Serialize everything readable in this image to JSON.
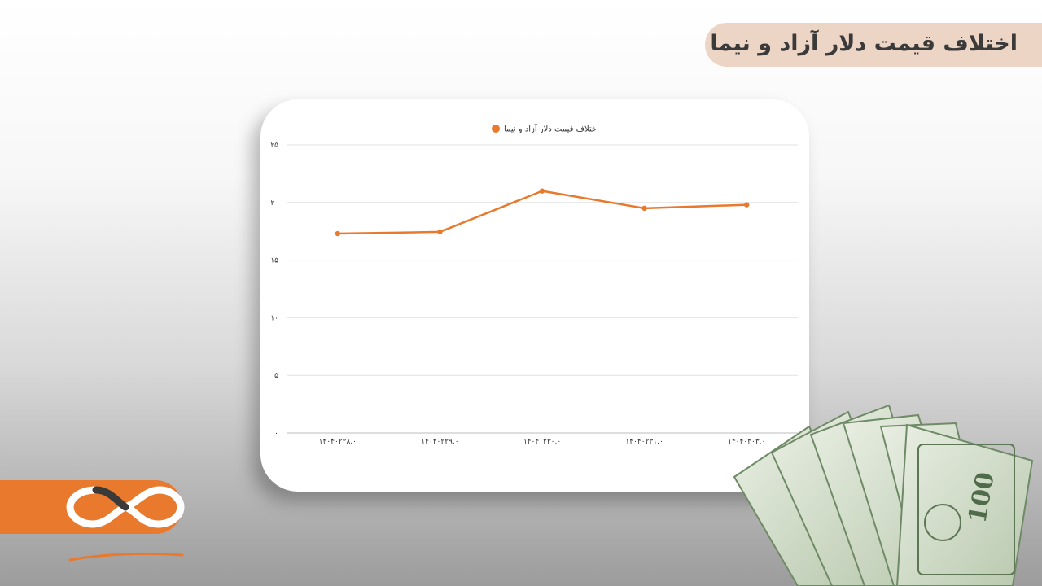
{
  "header": {
    "title": "اختلاف قیمت دلار آزاد و نیما"
  },
  "chart_data": {
    "type": "line",
    "categories": [
      "۱۴۰۴۰۲۲۸.۰",
      "۱۴۰۴۰۲۲۹.۰",
      "۱۴۰۴۰۲۳۰.۰",
      "۱۴۰۴۰۲۳۱.۰",
      "۱۴۰۴۰۳۰۳.۰"
    ],
    "series": [
      {
        "name": "اختلاف قیمت دلار آزاد و نیما",
        "values": [
          17.3,
          17.45,
          21.0,
          19.5,
          19.8
        ]
      }
    ],
    "yticks": [
      "۰",
      "۵",
      "۱۰",
      "۱۵",
      "۲۰",
      "۲۵"
    ],
    "ylim": [
      0,
      25
    ],
    "grid": true,
    "legend_position": "top-center",
    "line_color": "#e8792d"
  },
  "colors": {
    "accent": "#e8792d",
    "title_pill": "#edd5c6",
    "money_green": "#8da684"
  },
  "decor": {
    "logo_icon": "infinity-logo-icon",
    "money_icon": "dollar-bills-icon"
  }
}
